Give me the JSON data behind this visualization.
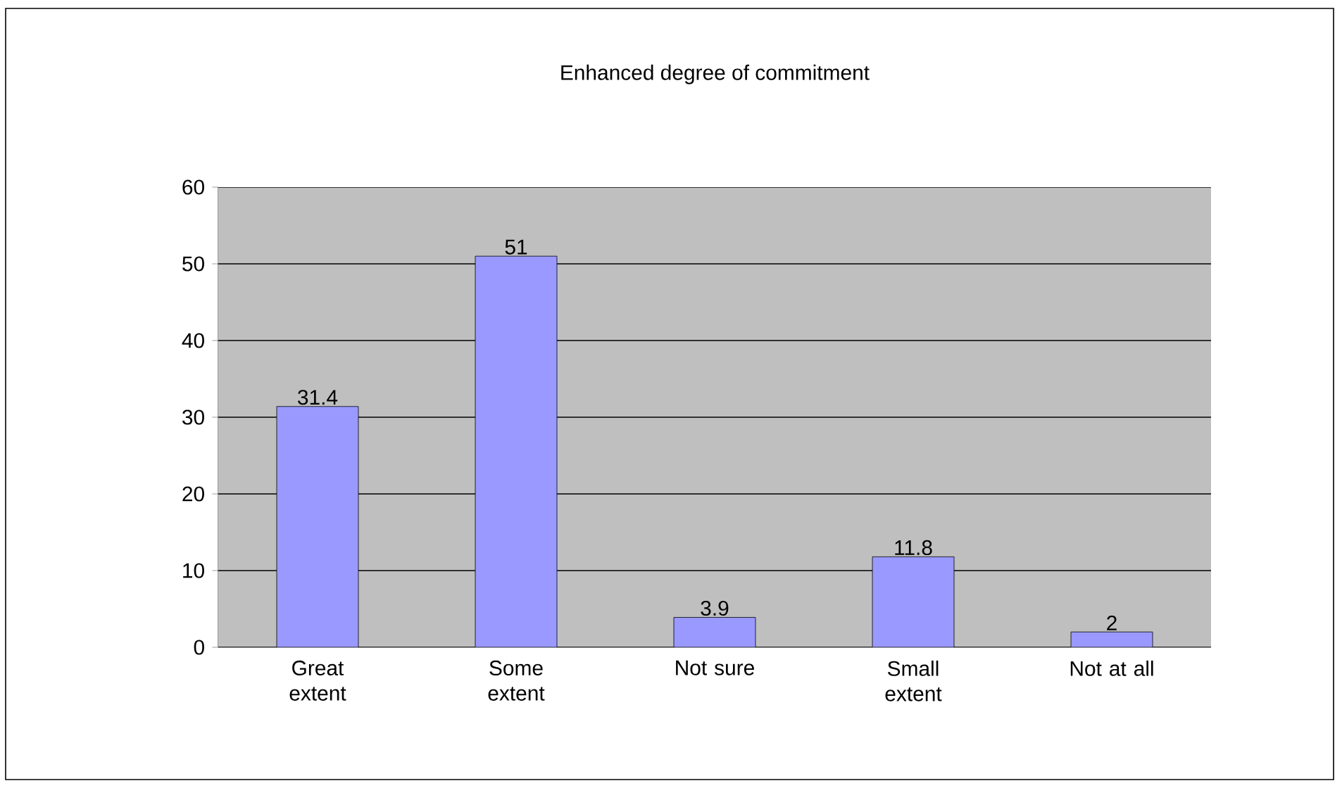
{
  "chart_data": {
    "type": "bar",
    "title": "Enhanced degree of commitment",
    "categories": [
      "Great extent",
      "Some extent",
      "Not sure",
      "Small extent",
      "Not at all"
    ],
    "values": [
      31.4,
      51,
      3.9,
      11.8,
      2
    ],
    "color": "#9999ff",
    "ylim": [
      0,
      60
    ],
    "yticks": [
      0,
      10,
      20,
      30,
      40,
      50,
      60
    ],
    "grid": "y",
    "data_labels": true
  }
}
